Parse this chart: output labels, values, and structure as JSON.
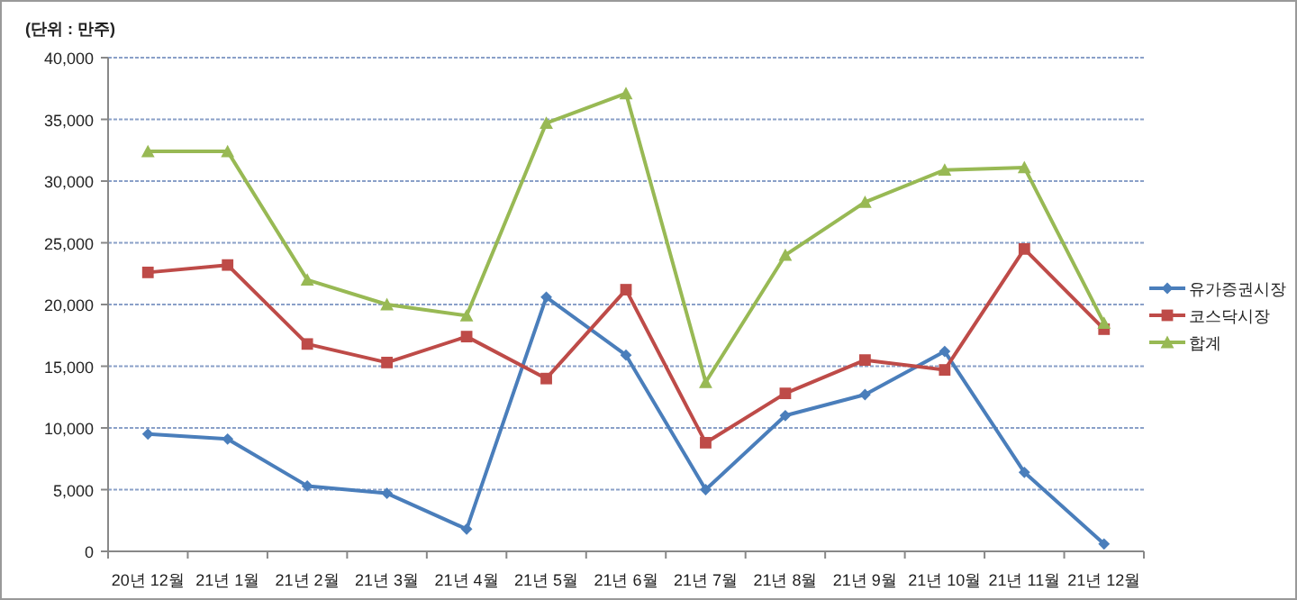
{
  "chart_data": {
    "type": "line",
    "ylabel": "(단위 : 만주)",
    "categories": [
      "20년 12월",
      "21년 1월",
      "21년 2월",
      "21년 3월",
      "21년 4월",
      "21년 5월",
      "21년 6월",
      "21년 7월",
      "21년 8월",
      "21년 9월",
      "21년 10월",
      "21년 11월",
      "21년 12월"
    ],
    "series": [
      {
        "name": "유가증권시장",
        "color": "#4a7ebb",
        "marker": "diamond",
        "values": [
          9500,
          9100,
          5300,
          4700,
          1800,
          20600,
          15900,
          5000,
          11000,
          12700,
          16200,
          6400,
          600
        ]
      },
      {
        "name": "코스닥시장",
        "color": "#be4b48",
        "marker": "square",
        "values": [
          22600,
          23200,
          16800,
          15300,
          17400,
          14000,
          21200,
          8800,
          12800,
          15500,
          14700,
          24500,
          18000
        ]
      },
      {
        "name": "합계",
        "color": "#98b954",
        "marker": "triangle",
        "values": [
          32400,
          32400,
          22000,
          20000,
          19100,
          34700,
          37100,
          13700,
          24000,
          28300,
          30900,
          31100,
          18500
        ]
      }
    ],
    "ylim": [
      0,
      40000
    ],
    "yticks": [
      {
        "value": 0,
        "label": "0"
      },
      {
        "value": 5000,
        "label": "5,000"
      },
      {
        "value": 10000,
        "label": "10,000"
      },
      {
        "value": 15000,
        "label": "15,000"
      },
      {
        "value": 20000,
        "label": "20,000"
      },
      {
        "value": 25000,
        "label": "25,000"
      },
      {
        "value": 30000,
        "label": "30,000"
      },
      {
        "value": 35000,
        "label": "35,000"
      },
      {
        "value": 40000,
        "label": "40,000"
      }
    ],
    "grid": "y",
    "legend": "right",
    "line_style": "solid"
  }
}
